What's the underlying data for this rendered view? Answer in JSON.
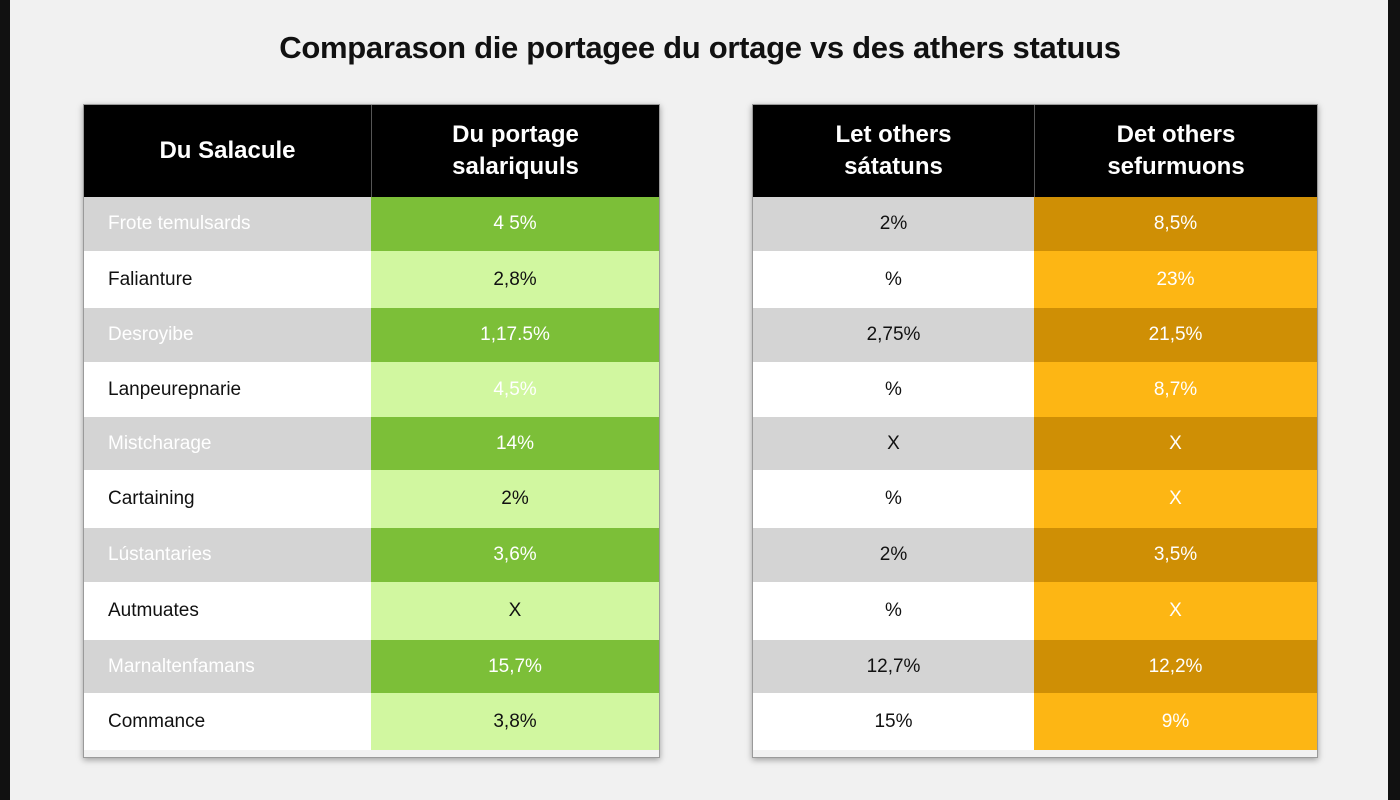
{
  "title": "Comparason die portagee du ortage vs des athers statuus",
  "colors": {
    "header_bg": "#000000",
    "label_dark_bg": "#d4d4d4",
    "label_light_bg": "#ffffff",
    "green_dark": "#7cbf38",
    "green_light": "#d1f7a0",
    "gray_dark": "#d4d4d4",
    "gray_light": "#ffffff",
    "orange_dark": "#cf8f05",
    "orange_light": "#fdb614"
  },
  "chart_data": {
    "type": "table",
    "title": "Comparason die portagee du ortage vs des athers statuus",
    "tables": [
      {
        "columns": [
          "Du Salacule",
          "Du portage salariquuls"
        ],
        "rows": [
          [
            "Frote temulsards",
            "4 5%"
          ],
          [
            "Falianture",
            "2,8%"
          ],
          [
            "Desroyibe",
            "1,17.5%"
          ],
          [
            "Lanpeurepnarie",
            "4,5%"
          ],
          [
            "Mistcharage",
            "14%"
          ],
          [
            "Cartaining",
            "2%"
          ],
          [
            "Lústantaries",
            "3,6%"
          ],
          [
            "Autmuates",
            "X"
          ],
          [
            "Marnaltenfamans",
            "15,7%"
          ],
          [
            "Commance",
            "3,8%"
          ]
        ]
      },
      {
        "columns": [
          "Let others sátatuns",
          "Det others sefurmuons"
        ],
        "rows": [
          [
            "2%",
            "8,5%"
          ],
          [
            "%",
            "23%"
          ],
          [
            "2,75%",
            "21,5%"
          ],
          [
            "%",
            "8,7%"
          ],
          [
            "X",
            "X"
          ],
          [
            "%",
            "X"
          ],
          [
            "2%",
            "3,5%"
          ],
          [
            "%",
            "X"
          ],
          [
            "12,7%",
            "12,2%"
          ],
          [
            "15%",
            "9%"
          ]
        ]
      }
    ]
  }
}
